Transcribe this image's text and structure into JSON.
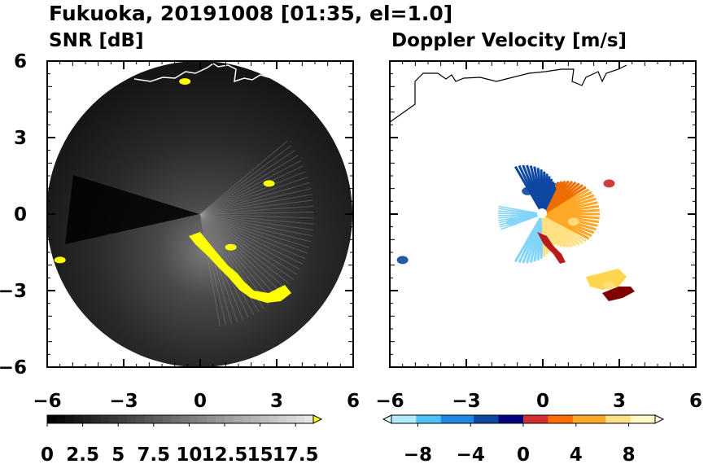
{
  "figure_title": "Fukuoka, 20191008 [01:35, el=1.0]",
  "chart_data": [
    {
      "type": "heatmap",
      "title": "SNR [dB]",
      "xlim": [
        -6,
        6
      ],
      "ylim": [
        -6,
        6
      ],
      "x_ticks": [
        "−6",
        "−3",
        "0",
        "3",
        "6"
      ],
      "y_ticks": [
        "6",
        "3",
        "0",
        "−3",
        "−6"
      ],
      "colorbar": {
        "min": 0,
        "max": 18.75,
        "extend": "max",
        "tick_values": [
          0,
          2.5,
          5,
          7.5,
          10,
          12.5,
          15,
          17.5
        ],
        "tick_labels": [
          "0",
          "2.5",
          "5",
          "7.5",
          "10",
          "12.5",
          "15",
          "17.5"
        ],
        "colors": [
          "#000000",
          "#ffffff",
          "#ffff00"
        ]
      },
      "range_ring_radius": 6,
      "high_snr_echoes": [
        {
          "x": 2.7,
          "y": 1.2
        },
        {
          "x": 1.2,
          "y": -1.3
        },
        {
          "x": 3.2,
          "y": -3.0
        },
        {
          "x": -5.5,
          "y": -1.8
        },
        {
          "x": -0.6,
          "y": 5.2
        }
      ]
    },
    {
      "type": "heatmap",
      "title": "Doppler Velocity [m/s]",
      "xlim": [
        -6,
        6
      ],
      "ylim": [
        -6,
        6
      ],
      "x_ticks": [
        "−6",
        "−3",
        "0",
        "3",
        "6"
      ],
      "y_ticks": [
        "6",
        "3",
        "0",
        "−3",
        "−6"
      ],
      "colorbar": {
        "min": -10,
        "max": 10,
        "extend": "both",
        "tick_values": [
          -8,
          -4,
          0,
          4,
          8
        ],
        "tick_labels": [
          "−8",
          "−4",
          "0",
          "4",
          "8"
        ],
        "colors": [
          "#e0ffff",
          "#4fc3f7",
          "#0d47a1",
          "#000060",
          "#c62828",
          "#ff6f00",
          "#ffd54f",
          "#fffde7"
        ]
      },
      "velocity_regions": [
        {
          "x": -0.6,
          "y": 0.9,
          "velocity": -9
        },
        {
          "x": -1.2,
          "y": -0.3,
          "velocity": -3
        },
        {
          "x": 0.7,
          "y": 1.1,
          "velocity": 3
        },
        {
          "x": 1.2,
          "y": -0.3,
          "velocity": 6
        },
        {
          "x": 2.6,
          "y": -2.8,
          "velocity": 8
        },
        {
          "x": -5.5,
          "y": -1.8,
          "velocity": -9
        },
        {
          "x": 2.6,
          "y": 1.2,
          "velocity": 0
        }
      ]
    }
  ]
}
